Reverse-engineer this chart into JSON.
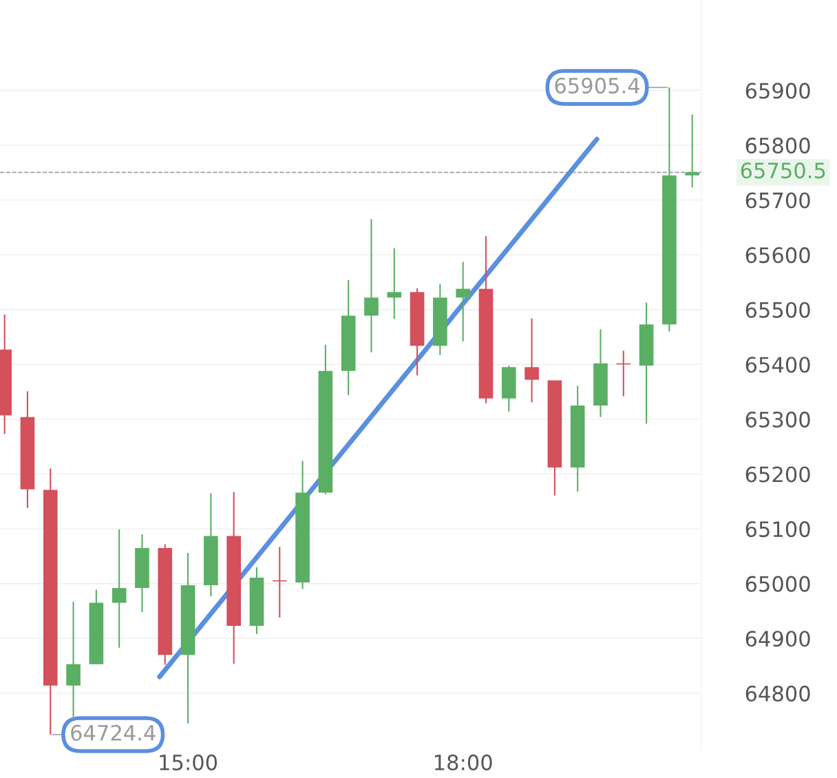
{
  "chart_data": {
    "type": "candlestick",
    "x": [
      13.0,
      13.25,
      13.5,
      13.75,
      14.0,
      14.25,
      14.5,
      14.75,
      15.0,
      15.25,
      15.5,
      15.75,
      16.0,
      16.25,
      16.5,
      16.75,
      17.0,
      17.25,
      17.5,
      17.75,
      18.0,
      18.25,
      18.5,
      18.75,
      19.0,
      19.25,
      19.5,
      19.75,
      20.0,
      20.25,
      20.5
    ],
    "ohlc": [
      [
        65427,
        65491,
        65273,
        65307
      ],
      [
        65304,
        65351,
        65138,
        65172
      ],
      [
        65171,
        65210,
        64724.4,
        64814
      ],
      [
        64814,
        64967,
        64757,
        64853
      ],
      [
        64853,
        64989,
        64853,
        64965
      ],
      [
        64965,
        65099,
        64883,
        64992
      ],
      [
        64992,
        65090,
        64948,
        65065
      ],
      [
        65065,
        65072,
        64852,
        64870
      ],
      [
        64870,
        65056,
        64745,
        64997
      ],
      [
        64997,
        65165,
        64977,
        65087
      ],
      [
        65087,
        65167,
        64854,
        64923
      ],
      [
        64923,
        65030,
        64908,
        65011
      ],
      [
        65006,
        65067,
        64938,
        65004
      ],
      [
        65002,
        65224,
        64990,
        65166
      ],
      [
        65166,
        65436,
        65163,
        65388
      ],
      [
        65388,
        65554,
        65344,
        65489
      ],
      [
        65489,
        65665,
        65422,
        65522
      ],
      [
        65522,
        65612,
        65483,
        65532
      ],
      [
        65532,
        65539,
        65380,
        65434
      ],
      [
        65434,
        65547,
        65417,
        65522
      ],
      [
        65522,
        65587,
        65442,
        65538
      ],
      [
        65538,
        65634,
        65329,
        65338
      ],
      [
        65338,
        65398,
        65314,
        65395
      ],
      [
        65395,
        65484,
        65331,
        65372
      ],
      [
        65371,
        65371,
        65161,
        65212
      ],
      [
        65212,
        65361,
        65168,
        65325
      ],
      [
        65325,
        65464,
        65304,
        65402
      ],
      [
        65402,
        65425,
        65342,
        65400
      ],
      [
        65398,
        65513,
        65292,
        65473
      ],
      [
        65473,
        65905.4,
        65460,
        65745
      ],
      [
        65745,
        65856,
        65723,
        65750.5
      ]
    ],
    "colors": [
      "#d4505a",
      "#d4505a",
      "#d4505a",
      "#5aaf64",
      "#5aaf64",
      "#5aaf64",
      "#5aaf64",
      "#d4505a",
      "#5aaf64",
      "#5aaf64",
      "#d4505a",
      "#5aaf64",
      "#d4505a",
      "#5aaf64",
      "#5aaf64",
      "#5aaf64",
      "#5aaf64",
      "#5aaf64",
      "#d4505a",
      "#5aaf64",
      "#5aaf64",
      "#d4505a",
      "#5aaf64",
      "#d4505a",
      "#d4505a",
      "#5aaf64",
      "#5aaf64",
      "#d4505a",
      "#5aaf64",
      "#5aaf64",
      "#5aaf64"
    ],
    "series": [
      {
        "type": "line",
        "x": [
          14.69,
          19.46
        ],
        "values": [
          64830,
          65811
        ],
        "color": "#5b8fe0"
      }
    ],
    "xlim": [
      12.95,
      20.6
    ],
    "xticks": [
      {
        "value": 15,
        "label": "15:00"
      },
      {
        "value": 18,
        "label": "18:00"
      }
    ],
    "ylim": [
      64695,
      66065
    ],
    "yticks": [
      64800,
      64900,
      65000,
      65100,
      65200,
      65300,
      65400,
      65500,
      65600,
      65700,
      65800,
      65900
    ],
    "grid": "y",
    "ref_lines": [
      {
        "axis": "y",
        "value": 65750.5,
        "label": "65750.5",
        "color": "#9e9e9e",
        "line_style": "dashed"
      }
    ],
    "annotations": [
      {
        "text": "65905.4",
        "x": 20.25,
        "y": 65905.4
      },
      {
        "text": "64724.4",
        "x": 13.5,
        "y": 64724.4
      }
    ]
  }
}
